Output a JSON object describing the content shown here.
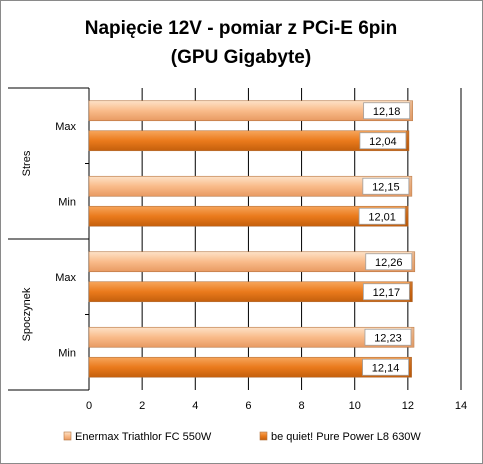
{
  "chart_data": {
    "type": "bar",
    "orientation": "horizontal",
    "title": "Napięcie 12V - pomiar z PCi-E 6pin",
    "subtitle": "(GPU Gigabyte)",
    "xlim": [
      0,
      14
    ],
    "xticks": [
      0,
      2,
      4,
      6,
      8,
      10,
      12,
      14
    ],
    "grid": true,
    "legend_position": "bottom",
    "groups": [
      {
        "label": "Stres",
        "categories": [
          "Max",
          "Min"
        ]
      },
      {
        "label": "Spoczynek",
        "categories": [
          "Max",
          "Min"
        ]
      }
    ],
    "series": [
      {
        "name": "Enermax Triathlor FC 550W",
        "color": "#f9bb8a",
        "values": [
          12.18,
          12.15,
          12.26,
          12.23
        ],
        "labels": [
          "12,18",
          "12,15",
          "12,26",
          "12,23"
        ]
      },
      {
        "name": "be quiet! Pure Power L8 630W",
        "color": "#ea7a1c",
        "values": [
          12.04,
          12.01,
          12.17,
          12.14
        ],
        "labels": [
          "12,04",
          "12,01",
          "12,17",
          "12,14"
        ]
      }
    ]
  }
}
